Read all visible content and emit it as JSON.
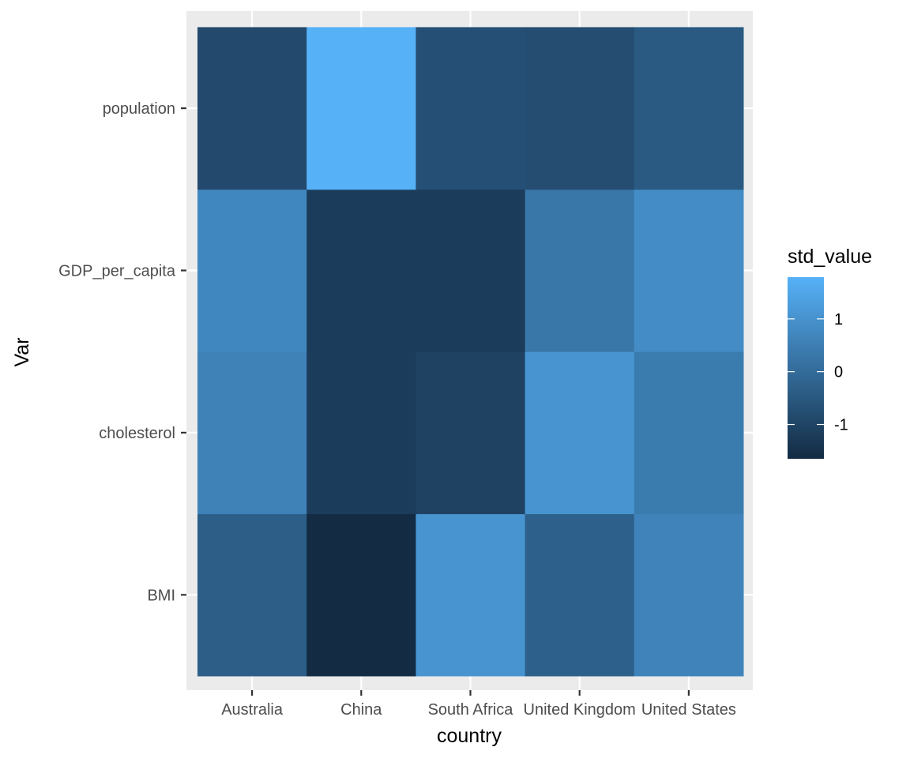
{
  "chart_data": {
    "type": "heatmap",
    "xlabel": "country",
    "ylabel": "Var",
    "x_categories": [
      "Australia",
      "China",
      "South Africa",
      "United Kingdom",
      "United States"
    ],
    "y_categories": [
      "BMI",
      "cholesterol",
      "GDP_per_capita",
      "population"
    ],
    "values": {
      "population": [
        -0.85,
        1.79,
        -0.72,
        -0.78,
        -0.45
      ],
      "GDP_per_capita": [
        0.72,
        -1.22,
        -1.22,
        0.3,
        0.85
      ],
      "cholesterol": [
        0.58,
        -1.22,
        -1.05,
        1.05,
        0.42
      ],
      "BMI": [
        -0.35,
        -1.65,
        1.05,
        -0.3,
        0.62
      ]
    },
    "legend": {
      "title": "std_value",
      "ticks": [
        1,
        0,
        -1
      ],
      "tick_labels": [
        "1",
        "0",
        "-1"
      ],
      "range": [
        -1.65,
        1.79
      ],
      "low_color": "#132B43",
      "high_color": "#56B1F7",
      "placement": "right"
    },
    "panel_background": "#EBEBEB",
    "grid": true
  }
}
